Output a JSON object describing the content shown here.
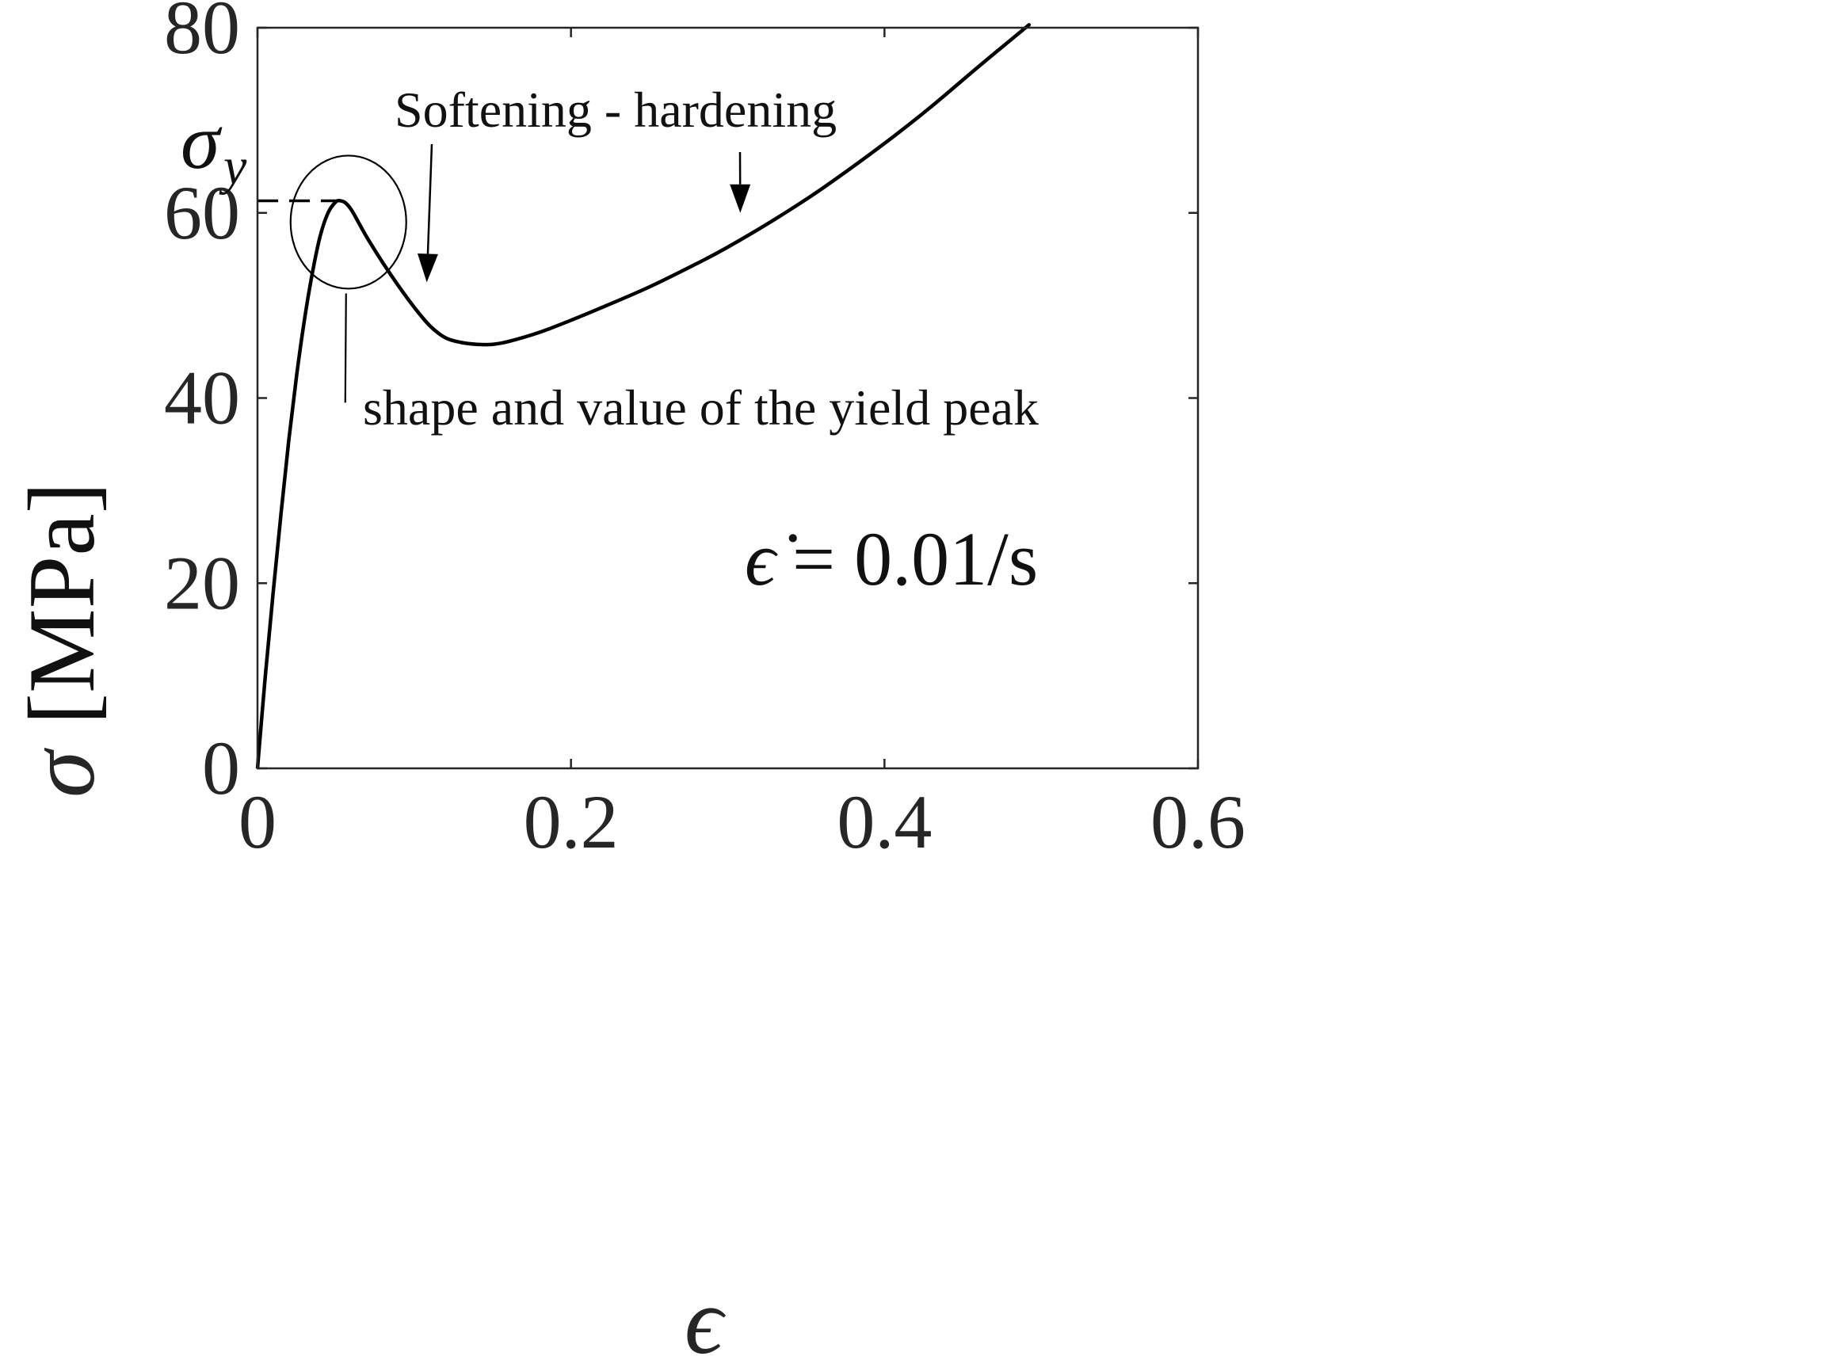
{
  "chart_data": {
    "type": "line",
    "xlabel": "ϵ",
    "ylabel_symbol": "σ",
    "ylabel_unit": "[MPa]",
    "xlim": [
      0,
      0.6
    ],
    "ylim": [
      0,
      80
    ],
    "x_ticks": [
      0,
      0.2,
      0.4,
      0.6
    ],
    "x_tick_labels": [
      "0",
      "0.2",
      "0.4",
      "0.6"
    ],
    "y_ticks": [
      0,
      20,
      40,
      60,
      80
    ],
    "y_tick_labels": [
      "0",
      "20",
      "40",
      "60",
      "80"
    ],
    "grid": false,
    "series": [
      {
        "x": [
          0,
          0.005,
          0.01,
          0.015,
          0.02,
          0.025,
          0.03,
          0.035,
          0.04,
          0.045,
          0.05,
          0.053,
          0.056,
          0.06,
          0.065,
          0.07,
          0.08,
          0.09,
          0.1,
          0.11,
          0.12,
          0.13,
          0.14,
          0.15,
          0.16,
          0.18,
          0.2,
          0.22,
          0.25,
          0.28,
          0.3,
          0.33,
          0.36,
          0.4,
          0.43,
          0.46,
          0.49,
          0.495
        ],
        "y": [
          0,
          10,
          19,
          27.5,
          35.5,
          42.5,
          48.5,
          53.5,
          57.5,
          60,
          61.2,
          61.3,
          61.1,
          60.3,
          58.8,
          57.3,
          54.6,
          52.1,
          49.8,
          47.8,
          46.5,
          46.0,
          45.8,
          45.8,
          46.1,
          47.1,
          48.4,
          49.8,
          52.0,
          54.5,
          56.3,
          59.3,
          62.6,
          67.5,
          71.5,
          75.8,
          80.0,
          80.7
        ]
      }
    ],
    "annotations": {
      "yield_label": "σ",
      "yield_subscript": "y",
      "yield_value": 61.3,
      "softening_label": "Softening - hardening",
      "peak_label": "shape and value of the yield peak",
      "rate_label_symbol": "ϵ̇",
      "rate_label_text": "= 0.01/s",
      "softening_arrow_target": {
        "x": 0.108,
        "y": 52.5
      },
      "hardening_arrow_target": {
        "x": 0.308,
        "y": 60.0
      },
      "peak_circle_center": {
        "x": 0.058,
        "y": 59.0
      },
      "peak_pointer_tail": {
        "x": 0.056,
        "y": 39.5
      }
    }
  }
}
